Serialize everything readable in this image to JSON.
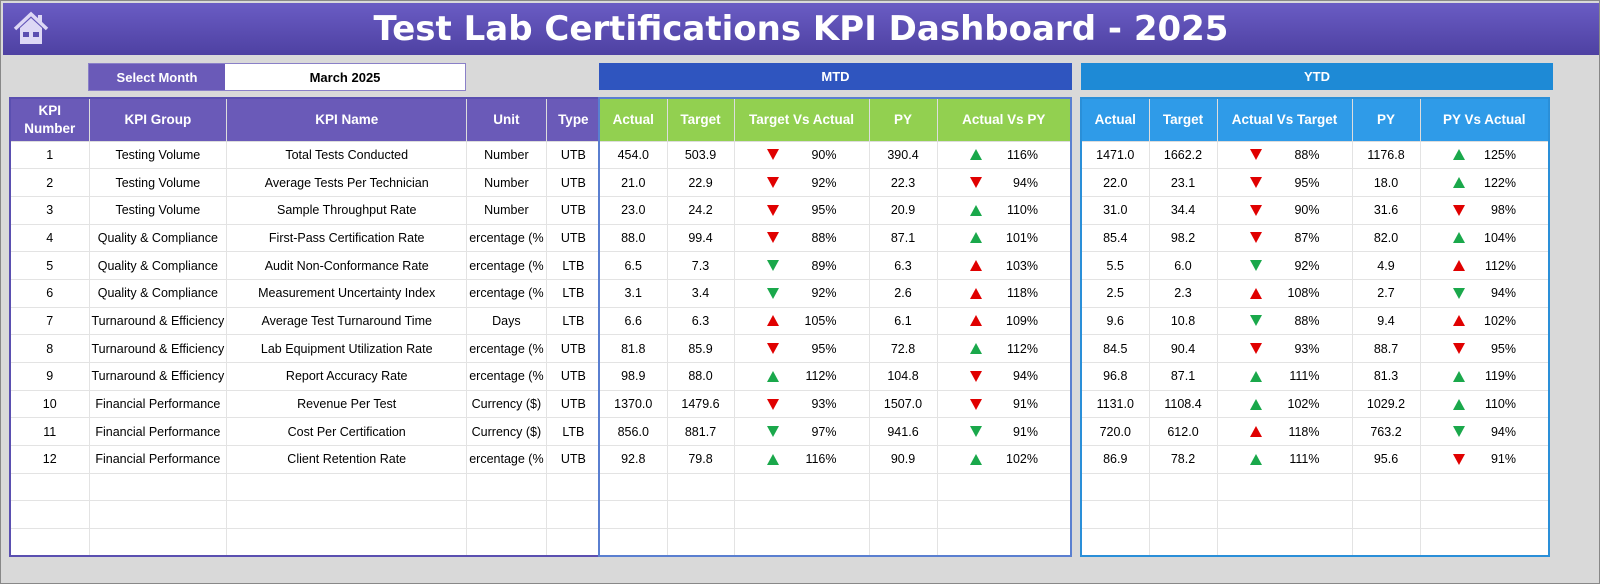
{
  "header": {
    "title": "Test Lab Certifications KPI Dashboard - 2025",
    "home_icon": "home-icon"
  },
  "selector": {
    "label": "Select Month",
    "value": "March 2025"
  },
  "banners": {
    "mtd": "MTD",
    "ytd": "YTD"
  },
  "colors": {
    "header": "#5a4fb0",
    "mtd_header": "#92d050",
    "ytd_header": "#2f9be8",
    "up": "#1aa84b",
    "down": "#e00000"
  },
  "left_columns": [
    "KPI Number",
    "KPI Group",
    "KPI Name",
    "Unit",
    "Type"
  ],
  "mtd_columns": [
    "Actual",
    "Target",
    "Target Vs Actual",
    "PY",
    "Actual Vs PY"
  ],
  "ytd_columns": [
    "Actual",
    "Target",
    "Actual Vs Target",
    "PY",
    "PY Vs Actual"
  ],
  "rows": [
    {
      "num": "1",
      "group": "Testing Volume",
      "name": "Total Tests Conducted",
      "unit": "Number",
      "type": "UTB",
      "mtd": [
        "454.0",
        "503.9",
        "down",
        "90%",
        "390.4",
        "up",
        "116%"
      ],
      "ytd": [
        "1471.0",
        "1662.2",
        "down",
        "88%",
        "1176.8",
        "up",
        "125%"
      ]
    },
    {
      "num": "2",
      "group": "Testing Volume",
      "name": "Average Tests Per Technician",
      "unit": "Number",
      "type": "UTB",
      "mtd": [
        "21.0",
        "22.9",
        "down",
        "92%",
        "22.3",
        "down",
        "94%"
      ],
      "ytd": [
        "22.0",
        "23.1",
        "down",
        "95%",
        "18.0",
        "up",
        "122%"
      ]
    },
    {
      "num": "3",
      "group": "Testing Volume",
      "name": "Sample Throughput Rate",
      "unit": "Number",
      "type": "UTB",
      "mtd": [
        "23.0",
        "24.2",
        "down",
        "95%",
        "20.9",
        "up",
        "110%"
      ],
      "ytd": [
        "31.0",
        "34.4",
        "down",
        "90%",
        "31.6",
        "down",
        "98%"
      ]
    },
    {
      "num": "4",
      "group": "Quality & Compliance",
      "name": "First-Pass Certification Rate",
      "unit": "ercentage (%",
      "type": "UTB",
      "mtd": [
        "88.0",
        "99.4",
        "down",
        "88%",
        "87.1",
        "up",
        "101%"
      ],
      "ytd": [
        "85.4",
        "98.2",
        "down",
        "87%",
        "82.0",
        "up",
        "104%"
      ]
    },
    {
      "num": "5",
      "group": "Quality & Compliance",
      "name": "Audit Non-Conformance Rate",
      "unit": "ercentage (%",
      "type": "LTB",
      "mtd": [
        "6.5",
        "7.3",
        "up_green_down",
        "89%",
        "6.3",
        "up_red",
        "103%"
      ],
      "ytd": [
        "5.5",
        "6.0",
        "up_green_down",
        "92%",
        "4.9",
        "up_red",
        "112%"
      ]
    },
    {
      "num": "6",
      "group": "Quality & Compliance",
      "name": "Measurement Uncertainty Index",
      "unit": "ercentage (%",
      "type": "LTB",
      "mtd": [
        "3.1",
        "3.4",
        "up_green_down",
        "92%",
        "2.6",
        "up_red",
        "118%"
      ],
      "ytd": [
        "2.5",
        "2.3",
        "up_red",
        "108%",
        "2.7",
        "up_green_down",
        "94%"
      ]
    },
    {
      "num": "7",
      "group": "Turnaround & Efficiency",
      "name": "Average Test Turnaround Time",
      "unit": "Days",
      "type": "LTB",
      "mtd": [
        "6.6",
        "6.3",
        "up_red",
        "105%",
        "6.1",
        "up_red",
        "109%"
      ],
      "ytd": [
        "9.6",
        "10.8",
        "up_green_down",
        "88%",
        "9.4",
        "up_red",
        "102%"
      ]
    },
    {
      "num": "8",
      "group": "Turnaround & Efficiency",
      "name": "Lab Equipment Utilization Rate",
      "unit": "ercentage (%",
      "type": "UTB",
      "mtd": [
        "81.8",
        "85.9",
        "down",
        "95%",
        "72.8",
        "up",
        "112%"
      ],
      "ytd": [
        "84.5",
        "90.4",
        "down",
        "93%",
        "88.7",
        "down",
        "95%"
      ]
    },
    {
      "num": "9",
      "group": "Turnaround & Efficiency",
      "name": "Report Accuracy Rate",
      "unit": "ercentage (%",
      "type": "UTB",
      "mtd": [
        "98.9",
        "88.0",
        "up",
        "112%",
        "104.8",
        "down",
        "94%"
      ],
      "ytd": [
        "96.8",
        "87.1",
        "up",
        "111%",
        "81.3",
        "up",
        "119%"
      ]
    },
    {
      "num": "10",
      "group": "Financial Performance",
      "name": "Revenue Per Test",
      "unit": "Currency ($)",
      "type": "UTB",
      "mtd": [
        "1370.0",
        "1479.6",
        "down",
        "93%",
        "1507.0",
        "down",
        "91%"
      ],
      "ytd": [
        "1131.0",
        "1108.4",
        "up",
        "102%",
        "1029.2",
        "up",
        "110%"
      ]
    },
    {
      "num": "11",
      "group": "Financial Performance",
      "name": "Cost Per Certification",
      "unit": "Currency ($)",
      "type": "LTB",
      "mtd": [
        "856.0",
        "881.7",
        "up_green_down",
        "97%",
        "941.6",
        "up_green_down",
        "91%"
      ],
      "ytd": [
        "720.0",
        "612.0",
        "up_red",
        "118%",
        "763.2",
        "up_green_down",
        "94%"
      ]
    },
    {
      "num": "12",
      "group": "Financial Performance",
      "name": "Client Retention Rate",
      "unit": "ercentage (%",
      "type": "UTB",
      "mtd": [
        "92.8",
        "79.8",
        "up",
        "116%",
        "90.9",
        "up",
        "102%"
      ],
      "ytd": [
        "86.9",
        "78.2",
        "up",
        "111%",
        "95.6",
        "down",
        "91%"
      ]
    }
  ]
}
